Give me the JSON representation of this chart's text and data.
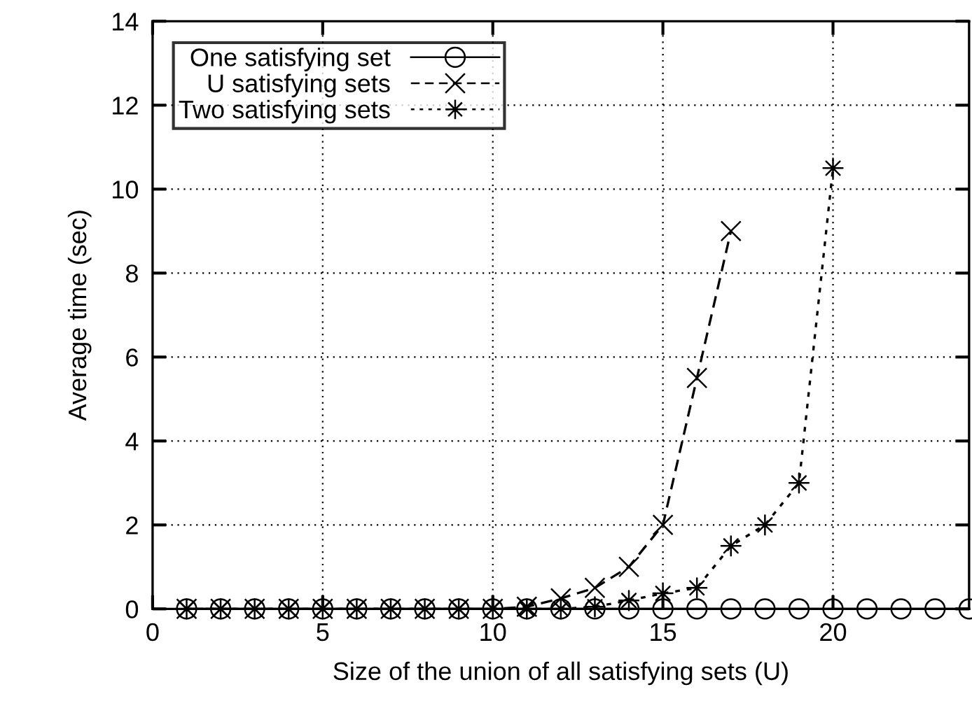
{
  "chart_data": {
    "type": "line",
    "xlabel": "Size of the union of all satisfying sets (U)",
    "ylabel": "Average time (sec)",
    "xlim": [
      0,
      24
    ],
    "xticks": [
      0,
      5,
      10,
      15,
      20
    ],
    "ylim": [
      0,
      14
    ],
    "yticks": [
      0,
      2,
      4,
      6,
      8,
      10,
      12,
      14
    ],
    "grid": true,
    "legend": "top left",
    "series": [
      {
        "name": "One satisfying set",
        "color": "#000000",
        "marker": "circle",
        "line_style": "solid",
        "x": [
          1,
          2,
          3,
          4,
          5,
          6,
          7,
          8,
          9,
          10,
          11,
          12,
          13,
          14,
          15,
          16,
          17,
          18,
          19,
          20,
          21,
          22,
          23,
          24
        ],
        "values": [
          0,
          0,
          0,
          0,
          0,
          0,
          0,
          0,
          0,
          0,
          0,
          0,
          0,
          0,
          0,
          0,
          0,
          0,
          0,
          0,
          0,
          0,
          0,
          0
        ]
      },
      {
        "name": "U satisfying sets",
        "color": "#000000",
        "marker": "cross",
        "line_style": "dashed",
        "x": [
          1,
          2,
          3,
          4,
          5,
          6,
          7,
          8,
          9,
          10,
          11,
          12,
          13,
          14,
          15,
          16,
          17
        ],
        "values": [
          0,
          0,
          0,
          0,
          0,
          0,
          0,
          0,
          0,
          0,
          0.05,
          0.25,
          0.5,
          1.0,
          2.0,
          5.5,
          9.0
        ]
      },
      {
        "name": "Two satisfying sets",
        "color": "#000000",
        "marker": "star",
        "line_style": "dotted",
        "x": [
          1,
          2,
          3,
          4,
          5,
          6,
          7,
          8,
          9,
          10,
          11,
          12,
          13,
          14,
          15,
          16,
          17,
          18,
          19,
          20
        ],
        "values": [
          0,
          0,
          0,
          0,
          0,
          0,
          0,
          0,
          0,
          0,
          0,
          0,
          0.05,
          0.2,
          0.37,
          0.5,
          1.5,
          2.0,
          3.0,
          10.5
        ]
      }
    ]
  }
}
